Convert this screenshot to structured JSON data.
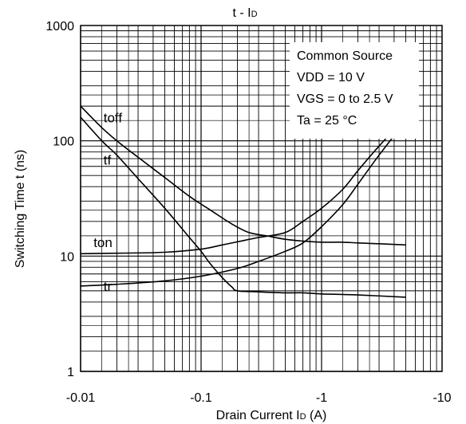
{
  "chart_data": {
    "type": "line",
    "title_main": "t - I",
    "title_sub": "D",
    "xlabel_main": "Drain Current I",
    "xlabel_sub": "D",
    "xlabel_unit": " (A)",
    "ylabel": "Switching Time t (ns)",
    "x_scale": "log",
    "y_scale": "log",
    "xlim": [
      -0.01,
      -10
    ],
    "ylim": [
      1,
      1000
    ],
    "x_ticks": [
      {
        "value": -0.01,
        "label": "-0.01"
      },
      {
        "value": -0.1,
        "label": "-0.1"
      },
      {
        "value": -1,
        "label": "-1"
      },
      {
        "value": -10,
        "label": "-10"
      }
    ],
    "y_ticks": [
      {
        "value": 1,
        "label": "1"
      },
      {
        "value": 10,
        "label": "10"
      },
      {
        "value": 100,
        "label": "100"
      },
      {
        "value": 1000,
        "label": "1000"
      }
    ],
    "grid": true,
    "legend_box": {
      "position": "top-right",
      "lines": [
        "Common Source",
        "VDD = 10 V",
        "VGS = 0 to 2.5 V",
        "Ta = 25 °C"
      ]
    },
    "series": [
      {
        "name": "toff",
        "x": [
          -0.01,
          -0.015,
          -0.02,
          -0.03,
          -0.05,
          -0.08,
          -0.12,
          -0.18,
          -0.25,
          -0.35,
          -0.5,
          -0.7,
          -1.0,
          -1.5,
          -2.0,
          -3.0,
          -5.0
        ],
        "y": [
          200,
          130,
          100,
          72,
          48,
          33,
          25,
          19,
          16,
          15,
          14,
          13.5,
          13.2,
          13.2,
          13.0,
          12.8,
          12.5
        ]
      },
      {
        "name": "tf",
        "x": [
          -0.01,
          -0.015,
          -0.02,
          -0.03,
          -0.05,
          -0.08,
          -0.1,
          -0.12,
          -0.15,
          -0.18,
          -0.2,
          -0.3,
          -0.5,
          -0.7,
          -1.0,
          -2.0,
          -5.0
        ],
        "y": [
          160,
          100,
          75,
          47,
          26,
          14.5,
          11,
          8.5,
          6.5,
          5.4,
          5.0,
          4.9,
          4.8,
          4.8,
          4.7,
          4.6,
          4.4
        ]
      },
      {
        "name": "ton",
        "x": [
          -0.01,
          -0.02,
          -0.05,
          -0.1,
          -0.15,
          -0.2,
          -0.3,
          -0.5,
          -0.7,
          -1.0,
          -1.5,
          -2.0,
          -3.0,
          -5.0
        ],
        "y": [
          10.5,
          10.6,
          10.8,
          11.5,
          12.5,
          13.3,
          14.5,
          16,
          20,
          26,
          38,
          55,
          90,
          160
        ]
      },
      {
        "name": "tr",
        "x": [
          -0.01,
          -0.02,
          -0.05,
          -0.1,
          -0.2,
          -0.3,
          -0.5,
          -0.7,
          -1.0,
          -1.5,
          -2.0,
          -3.0,
          -5.0
        ],
        "y": [
          5.5,
          5.7,
          6.1,
          6.7,
          7.8,
          9.0,
          11,
          13,
          18,
          28,
          42,
          75,
          150
        ]
      }
    ],
    "curve_labels": [
      {
        "text": "toff",
        "x": -0.0155,
        "y": 145
      },
      {
        "text": "tf",
        "x": -0.0155,
        "y": 62
      },
      {
        "text": "ton",
        "x": -0.0128,
        "y": 12
      },
      {
        "text": "tr",
        "x": -0.0155,
        "y": 5.0
      }
    ]
  }
}
